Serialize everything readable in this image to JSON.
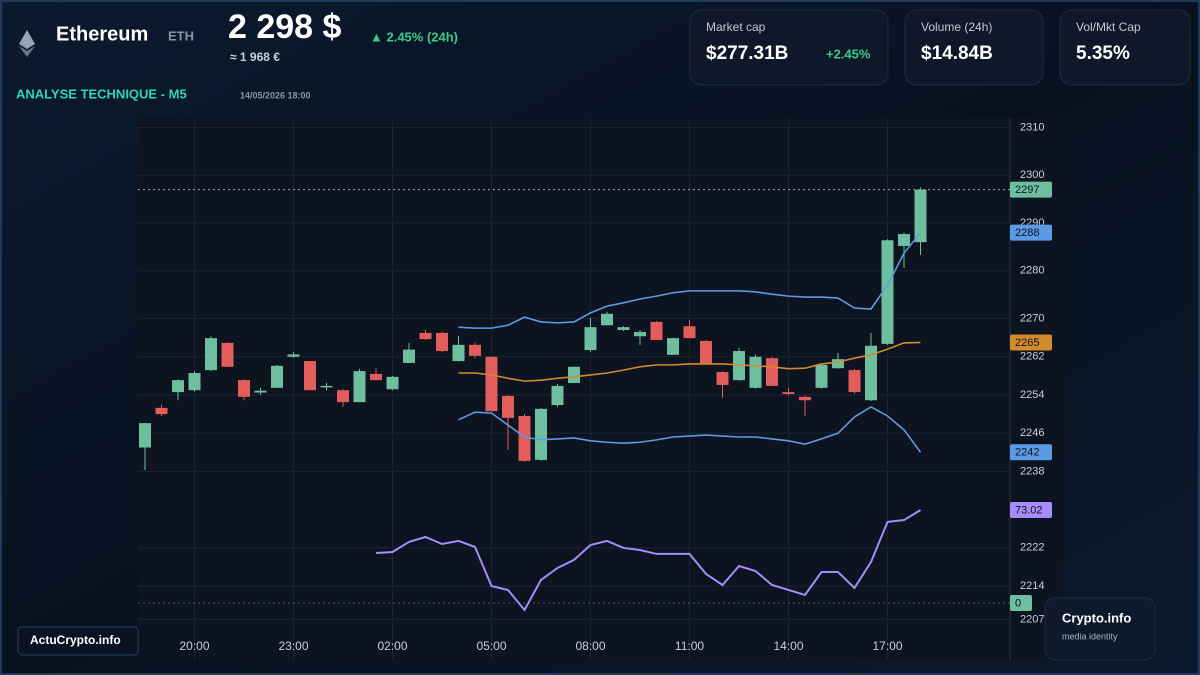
{
  "header": {
    "name": "Ethereum",
    "symbol": "ETH",
    "price": "2 298 $",
    "change": "▲ 2.45% (24h)",
    "converted": "≈ 1 968 €",
    "section": "ANALYSE TECHNIQUE - M5",
    "timestamp": "14/05/2026 18:00"
  },
  "stats": [
    {
      "label": "Market cap",
      "value": "$277.31B",
      "change": "+2.45%"
    },
    {
      "label": "Volume (24h)",
      "value": "$14.84B"
    },
    {
      "label": "Vol/Mkt Cap",
      "value": "5.35%"
    }
  ],
  "watermark": {
    "left": "ActuCrypto.info",
    "right": "Crypto.info",
    "tagline": "media identity"
  },
  "chart_data": {
    "type": "candlestick",
    "categories": [
      null,
      null,
      null,
      "20:00",
      null,
      null,
      null,
      null,
      null,
      "23:00",
      null,
      null,
      null,
      null,
      null,
      "02:00",
      null,
      null,
      null,
      null,
      null,
      "05:00",
      null,
      null,
      null,
      null,
      null,
      "08:00",
      null,
      null,
      null,
      null,
      null,
      "11:00",
      null,
      null,
      null,
      null,
      null,
      "14:00",
      null,
      null,
      null,
      null,
      null,
      "17:00",
      null,
      null
    ],
    "open": [
      2243,
      2251.3,
      2254.6,
      2255,
      2259.2,
      2264.9,
      2257.1,
      2254.5,
      2255.5,
      2262,
      2261.1,
      2255.6,
      2255,
      2252.5,
      2258.4,
      2255.2,
      2260.7,
      2267,
      2267,
      2261.1,
      2264.5,
      2262,
      2253.8,
      2249.6,
      2240.4,
      2251.9,
      2256.5,
      2263.4,
      2268.6,
      2267.6,
      2266.3,
      2269.3,
      2262.4,
      2268.4,
      2265.3,
      2258.8,
      2257.1,
      2255.5,
      2261.7,
      2254.6,
      2253.6,
      2255.5,
      2259.6,
      2259.2,
      2252.9,
      2264.7,
      2285.2,
      2286
    ],
    "high": [
      2248.1,
      2252,
      2257.3,
      2259,
      2266.3,
      2265,
      2257.3,
      2255.5,
      2260.3,
      2263,
      2261.1,
      2256.5,
      2255.2,
      2259.5,
      2259.6,
      2258,
      2264.9,
      2267.6,
      2267.2,
      2266.4,
      2265,
      2262,
      2254,
      2250,
      2251.3,
      2256.3,
      2260,
      2270.1,
      2271.4,
      2268.4,
      2267.6,
      2269.5,
      2266,
      2269.7,
      2265.5,
      2259,
      2263.8,
      2262.5,
      2262,
      2255.5,
      2253.8,
      2260.5,
      2262.8,
      2259.4,
      2267,
      2286.6,
      2288,
      2297.5
    ],
    "low": [
      2238.3,
      2249.6,
      2252.9,
      2254.7,
      2259,
      2259.9,
      2252.9,
      2254,
      2255.5,
      2261.8,
      2255,
      2255,
      2251.5,
      2252.5,
      2257,
      2255,
      2260.7,
      2265.5,
      2263,
      2261,
      2261.7,
      2250.6,
      2242.5,
      2240,
      2240.2,
      2251.5,
      2256.5,
      2263,
      2268.6,
      2267.4,
      2264.5,
      2265.5,
      2262.4,
      2265.9,
      2260.5,
      2253.4,
      2257,
      2255.3,
      2255.9,
      2253.9,
      2249.6,
      2255.3,
      2259.5,
      2254.3,
      2252.7,
      2264.5,
      2280.6,
      2283.3
    ],
    "close": [
      2248.1,
      2250,
      2257.1,
      2258.6,
      2265.9,
      2259.9,
      2253.6,
      2254.9,
      2260.1,
      2262.5,
      2255,
      2255.9,
      2252.5,
      2259,
      2257.1,
      2257.8,
      2263.5,
      2265.7,
      2263.2,
      2264.5,
      2262.2,
      2250.6,
      2249.2,
      2240.2,
      2251.1,
      2255.9,
      2259.9,
      2268.2,
      2271,
      2268.2,
      2267.2,
      2265.5,
      2265.9,
      2265.9,
      2260.5,
      2256.1,
      2263.2,
      2262,
      2255.9,
      2254.2,
      2252.9,
      2260.3,
      2261.5,
      2254.6,
      2264.3,
      2286.4,
      2287.7,
      2297
    ],
    "up_color": "#6dbfa0",
    "down_color": "#e35d5d",
    "series": [
      {
        "color": "#5b9be6",
        "values": [
          null,
          null,
          null,
          null,
          null,
          null,
          null,
          null,
          null,
          null,
          null,
          null,
          null,
          null,
          null,
          null,
          null,
          null,
          null,
          2268.2,
          2268,
          2268,
          2268.6,
          2270.3,
          2269.3,
          2269.1,
          2269.3,
          2271.2,
          2272.6,
          2273.3,
          2274.1,
          2274.7,
          2275.4,
          2275.8,
          2275.8,
          2275.8,
          2275.8,
          2275.6,
          2275.1,
          2274.7,
          2274.5,
          2274.5,
          2274.3,
          2272.2,
          2272,
          2277,
          2283.7,
          2288
        ]
      },
      {
        "color": "#d4892a",
        "values": [
          null,
          null,
          null,
          null,
          null,
          null,
          null,
          null,
          null,
          null,
          null,
          null,
          null,
          null,
          null,
          null,
          null,
          null,
          null,
          2258.6,
          2258.6,
          2258.2,
          2257.5,
          2256.9,
          2257.1,
          2257.5,
          2257.8,
          2258.2,
          2258.6,
          2259.2,
          2259.9,
          2260.3,
          2260.3,
          2260.5,
          2260.5,
          2260.5,
          2260.3,
          2260.1,
          2259.9,
          2259.5,
          2259.6,
          2260.5,
          2260.9,
          2261.7,
          2262.4,
          2263.6,
          2264.9,
          2265
        ]
      },
      {
        "color": "#5b9be6",
        "values": [
          null,
          null,
          null,
          null,
          null,
          null,
          null,
          null,
          null,
          null,
          null,
          null,
          null,
          null,
          null,
          null,
          null,
          null,
          null,
          2248.8,
          2250.4,
          2250.2,
          2247.7,
          2245.2,
          2244.6,
          2244.8,
          2245,
          2244.4,
          2244.1,
          2243.9,
          2244.1,
          2244.6,
          2245.2,
          2245.4,
          2245.6,
          2245.4,
          2245.2,
          2245.2,
          2244.8,
          2244.4,
          2243.7,
          2244.8,
          2246,
          2249.4,
          2251.5,
          2249.6,
          2246.7,
          2242
        ]
      },
      {
        "color": "#a78bfa",
        "axis": "y2",
        "values": [
          null,
          null,
          null,
          null,
          null,
          null,
          null,
          null,
          null,
          null,
          null,
          null,
          null,
          null,
          39.2,
          40,
          47.9,
          51.8,
          46.3,
          48.7,
          44,
          13.3,
          10.2,
          -5.5,
          18.1,
          27.5,
          33.8,
          45.5,
          48.7,
          43.2,
          41.6,
          38.5,
          38.5,
          38.5,
          22.8,
          14.1,
          29,
          25.1,
          14.1,
          10.2,
          6.3,
          24.3,
          24.3,
          11.8,
          32.2,
          63.6,
          65.1,
          73.02
        ]
      }
    ],
    "ylim": [
      2198.5,
      2312
    ],
    "yticks": [
      2207,
      2214,
      2222,
      2238,
      2246,
      2254,
      2262,
      2270,
      2280,
      2290,
      2300,
      2310
    ],
    "y2lim": [
      -10,
      100
    ],
    "y2ticks": [
      0
    ],
    "grid": true
  }
}
